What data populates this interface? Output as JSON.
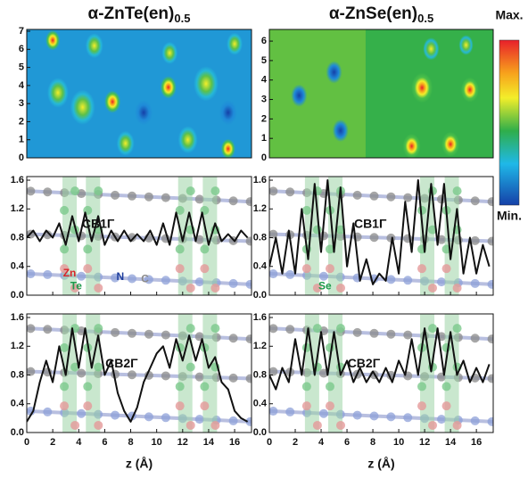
{
  "chart_data": [
    {
      "type": "contour",
      "title": "α-ZnTe(en)",
      "title_subscript": "0.5",
      "xlim": [
        0,
        17.3
      ],
      "ylim": [
        0,
        7.1
      ],
      "yticks": [
        0,
        1,
        2,
        3,
        4,
        5,
        6,
        7
      ]
    },
    {
      "type": "contour",
      "title": "α-ZnSe(en)",
      "title_subscript": "0.5",
      "xlim": [
        0,
        17.3
      ],
      "ylim": [
        0,
        6.6
      ],
      "yticks": [
        0,
        1,
        2,
        3,
        4,
        5,
        6
      ]
    },
    {
      "type": "line",
      "annotations": [
        "CB1Γ",
        "Zn",
        "N",
        "C",
        "Te"
      ],
      "xlim": [
        0,
        17.3
      ],
      "ylim": [
        0,
        1.65
      ],
      "xticks": [
        0,
        2,
        4,
        6,
        8,
        10,
        12,
        14,
        16
      ],
      "yticks": [
        {
          "value": 0,
          "label": "0.0"
        },
        0.4,
        0.8,
        1.2,
        1.6
      ],
      "x": [
        0,
        0.5,
        1,
        1.5,
        2,
        2.5,
        3,
        3.5,
        4,
        4.5,
        5,
        5.5,
        6,
        6.5,
        7,
        7.5,
        8,
        8.5,
        9,
        9.5,
        10,
        10.5,
        11,
        11.5,
        12,
        12.5,
        13,
        13.5,
        14,
        14.5,
        15,
        15.5,
        16,
        16.5,
        17
      ],
      "values": [
        0.8,
        0.9,
        0.75,
        0.9,
        0.8,
        1.0,
        0.7,
        1.1,
        0.75,
        1.15,
        0.75,
        1.1,
        0.7,
        0.9,
        0.75,
        0.9,
        0.75,
        0.85,
        0.75,
        0.9,
        0.7,
        1.0,
        0.7,
        1.15,
        0.75,
        1.15,
        0.75,
        1.15,
        0.7,
        1.0,
        0.75,
        0.85,
        0.75,
        0.9,
        0.8
      ],
      "color": "#111111"
    },
    {
      "type": "line",
      "annotations": [
        "CB1Γ",
        "Se"
      ],
      "xlim": [
        0,
        17.3
      ],
      "ylim": [
        0,
        1.65
      ],
      "xticks": [
        0,
        2,
        4,
        6,
        8,
        10,
        12,
        14,
        16
      ],
      "yticks": [
        {
          "value": 0,
          "label": "0.0"
        },
        0.4,
        0.8,
        1.2,
        1.6
      ],
      "x": [
        0,
        0.5,
        1,
        1.5,
        2,
        2.5,
        3,
        3.5,
        4,
        4.5,
        5,
        5.5,
        6,
        6.5,
        7,
        7.5,
        8,
        8.5,
        9,
        9.5,
        10,
        10.5,
        11,
        11.5,
        12,
        12.5,
        13,
        13.5,
        14,
        14.5,
        15,
        15.5,
        16,
        16.5,
        17
      ],
      "values": [
        0.4,
        0.8,
        0.3,
        0.9,
        0.3,
        1.2,
        0.5,
        1.55,
        0.6,
        1.6,
        0.6,
        1.5,
        0.4,
        1.0,
        0.2,
        0.5,
        0.15,
        0.3,
        0.2,
        0.8,
        0.3,
        1.3,
        0.6,
        1.6,
        0.6,
        1.55,
        0.7,
        1.55,
        0.5,
        1.2,
        0.3,
        0.8,
        0.3,
        0.7,
        0.4
      ],
      "color": "#111111"
    },
    {
      "type": "line",
      "annotations": [
        "CB2Γ"
      ],
      "xlim": [
        0,
        17.3
      ],
      "ylim": [
        0,
        1.65
      ],
      "xlabel": "z (Å)",
      "xticks": [
        0,
        2,
        4,
        6,
        8,
        10,
        12,
        14,
        16
      ],
      "yticks": [
        {
          "value": 0,
          "label": "0.0"
        },
        0.4,
        0.8,
        1.2,
        1.6
      ],
      "x": [
        0,
        0.5,
        1,
        1.5,
        2,
        2.5,
        3,
        3.5,
        4,
        4.5,
        5,
        5.5,
        6,
        6.5,
        7,
        7.5,
        8,
        8.5,
        9,
        9.5,
        10,
        10.5,
        11,
        11.5,
        12,
        12.5,
        13,
        13.5,
        14,
        14.5,
        15,
        15.5,
        16,
        16.5,
        17
      ],
      "values": [
        0.15,
        0.3,
        0.7,
        1.0,
        0.7,
        1.2,
        0.8,
        1.45,
        0.9,
        1.45,
        0.9,
        1.35,
        0.8,
        1.0,
        0.55,
        0.3,
        0.15,
        0.35,
        0.7,
        0.9,
        1.1,
        1.2,
        0.9,
        1.3,
        1.0,
        1.35,
        1.0,
        1.3,
        0.9,
        1.05,
        0.7,
        0.6,
        0.3,
        0.2,
        0.15
      ],
      "color": "#111111"
    },
    {
      "type": "line",
      "annotations": [
        "CB2Γ"
      ],
      "xlim": [
        0,
        17.3
      ],
      "ylim": [
        0,
        1.65
      ],
      "xlabel": "z (Å)",
      "xticks": [
        0,
        2,
        4,
        6,
        8,
        10,
        12,
        14,
        16
      ],
      "yticks": [
        {
          "value": 0,
          "label": "0.0"
        },
        0.4,
        0.8,
        1.2,
        1.6
      ],
      "x": [
        0,
        0.5,
        1,
        1.5,
        2,
        2.5,
        3,
        3.5,
        4,
        4.5,
        5,
        5.5,
        6,
        6.5,
        7,
        7.5,
        8,
        8.5,
        9,
        9.5,
        10,
        10.5,
        11,
        11.5,
        12,
        12.5,
        13,
        13.5,
        14,
        14.5,
        15,
        15.5,
        16,
        16.5,
        17
      ],
      "values": [
        0.8,
        0.6,
        0.9,
        0.7,
        1.3,
        0.8,
        1.45,
        0.8,
        1.4,
        0.8,
        1.4,
        0.8,
        1.0,
        0.7,
        0.9,
        0.7,
        0.85,
        0.7,
        0.9,
        0.7,
        1.0,
        0.8,
        1.3,
        0.8,
        1.45,
        0.85,
        1.45,
        0.8,
        1.4,
        0.8,
        1.0,
        0.7,
        0.9,
        0.7,
        0.95
      ],
      "color": "#111111"
    }
  ],
  "colorbar": {
    "max_label": "Max.",
    "min_label": "Min."
  }
}
